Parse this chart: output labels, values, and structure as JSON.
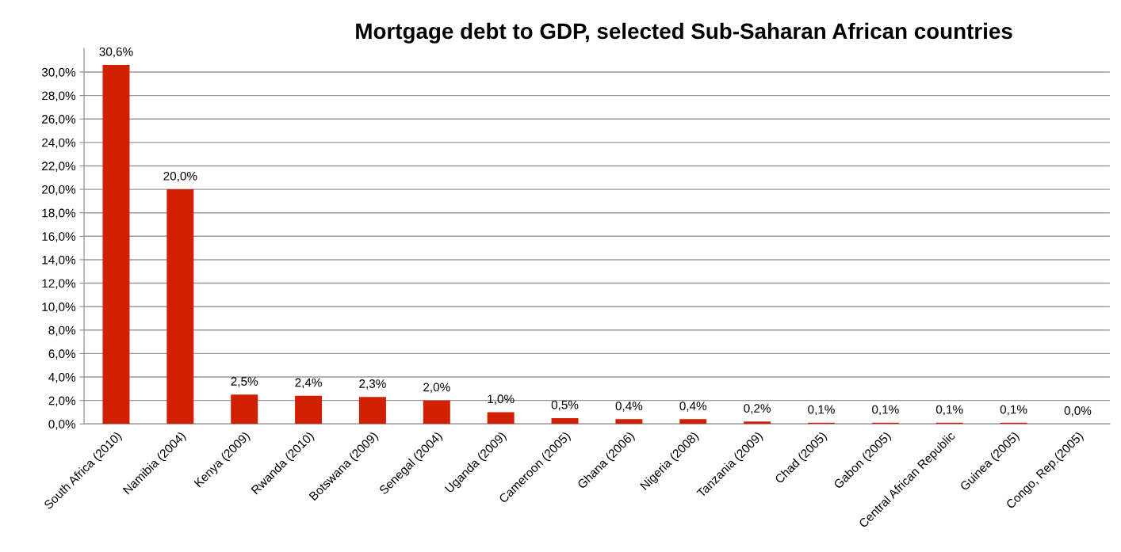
{
  "chart_data": {
    "type": "bar",
    "title": "Mortgage debt to GDP, selected Sub-Saharan African countries",
    "categories": [
      "South Africa (2010)",
      "Namibia (2004)",
      "Kenya (2009)",
      "Rwanda (2010)",
      "Botswana (2009)",
      "Senegal (2004)",
      "Uganda (2009)",
      "Cameroon (2005)",
      "Ghana (2006)",
      "Nigeria (2008)",
      "Tanzania (2009)",
      "Chad (2005)",
      "Gabon (2005)",
      "Central African Republic",
      "Guinea (2005)",
      "Congo, Rep.(2005)"
    ],
    "values": [
      30.6,
      20.0,
      2.5,
      2.4,
      2.3,
      2.0,
      1.0,
      0.5,
      0.4,
      0.4,
      0.2,
      0.1,
      0.1,
      0.1,
      0.1,
      0.0
    ],
    "value_labels": [
      "30,6%",
      "20,0%",
      "2,5%",
      "2,4%",
      "2,3%",
      "2,0%",
      "1,0%",
      "0,5%",
      "0,4%",
      "0,4%",
      "0,2%",
      "0,1%",
      "0,1%",
      "0,1%",
      "0,1%",
      "0,0%"
    ],
    "color": "#d02000",
    "ylim": [
      0,
      32
    ],
    "yticks": [
      {
        "value": 0,
        "label": "0,0%"
      },
      {
        "value": 2,
        "label": "2,0%"
      },
      {
        "value": 4,
        "label": "4,0%"
      },
      {
        "value": 6,
        "label": "6,0%"
      },
      {
        "value": 8,
        "label": "8,0%"
      },
      {
        "value": 10,
        "label": "10,0%"
      },
      {
        "value": 12,
        "label": "12,0%"
      },
      {
        "value": 14,
        "label": "14,0%"
      },
      {
        "value": 16,
        "label": "16,0%"
      },
      {
        "value": 18,
        "label": "18,0%"
      },
      {
        "value": 20,
        "label": "20,0%"
      },
      {
        "value": 22,
        "label": "22,0%"
      },
      {
        "value": 24,
        "label": "24,0%"
      },
      {
        "value": 26,
        "label": "26,0%"
      },
      {
        "value": 28,
        "label": "28,0%"
      },
      {
        "value": 30,
        "label": "30,0%"
      }
    ],
    "grid": "y"
  }
}
